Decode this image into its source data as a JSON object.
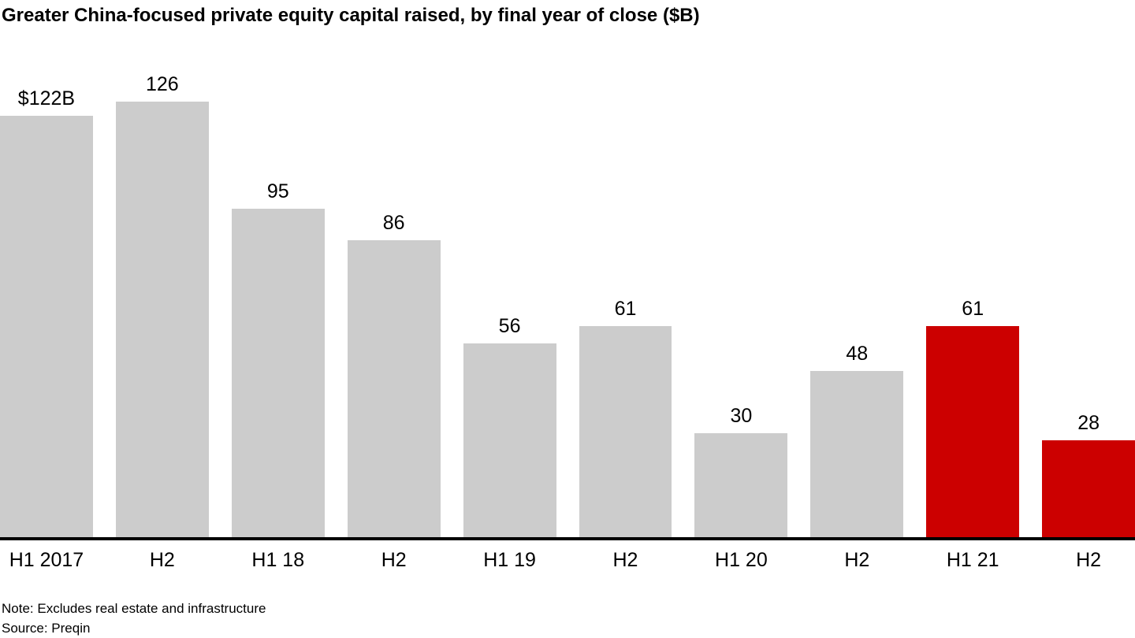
{
  "chart_data": {
    "type": "bar",
    "title": "Greater China-focused private equity capital raised, by final year of close ($B)",
    "categories": [
      "H1 2017",
      "H2",
      "H1 18",
      "H2",
      "H1 19",
      "H2",
      "H1 20",
      "H2",
      "H1 21",
      "H2"
    ],
    "values": [
      122,
      126,
      95,
      86,
      56,
      61,
      30,
      48,
      61,
      28
    ],
    "value_labels": [
      "$122B",
      "126",
      "95",
      "86",
      "56",
      "61",
      "30",
      "48",
      "61",
      "28"
    ],
    "highlighted": [
      false,
      false,
      false,
      false,
      false,
      false,
      false,
      false,
      true,
      true
    ],
    "unit": "$B",
    "xlabel": "",
    "ylabel": "",
    "ylim": [
      0,
      126
    ],
    "grid": false,
    "legend": false,
    "colors": {
      "bar": "#CCCCCC",
      "highlight": "#CC0000",
      "axis": "#000000",
      "text": "#000000"
    }
  },
  "note": "Note: Excludes real estate and infrastructure",
  "source": "Source: Preqin"
}
